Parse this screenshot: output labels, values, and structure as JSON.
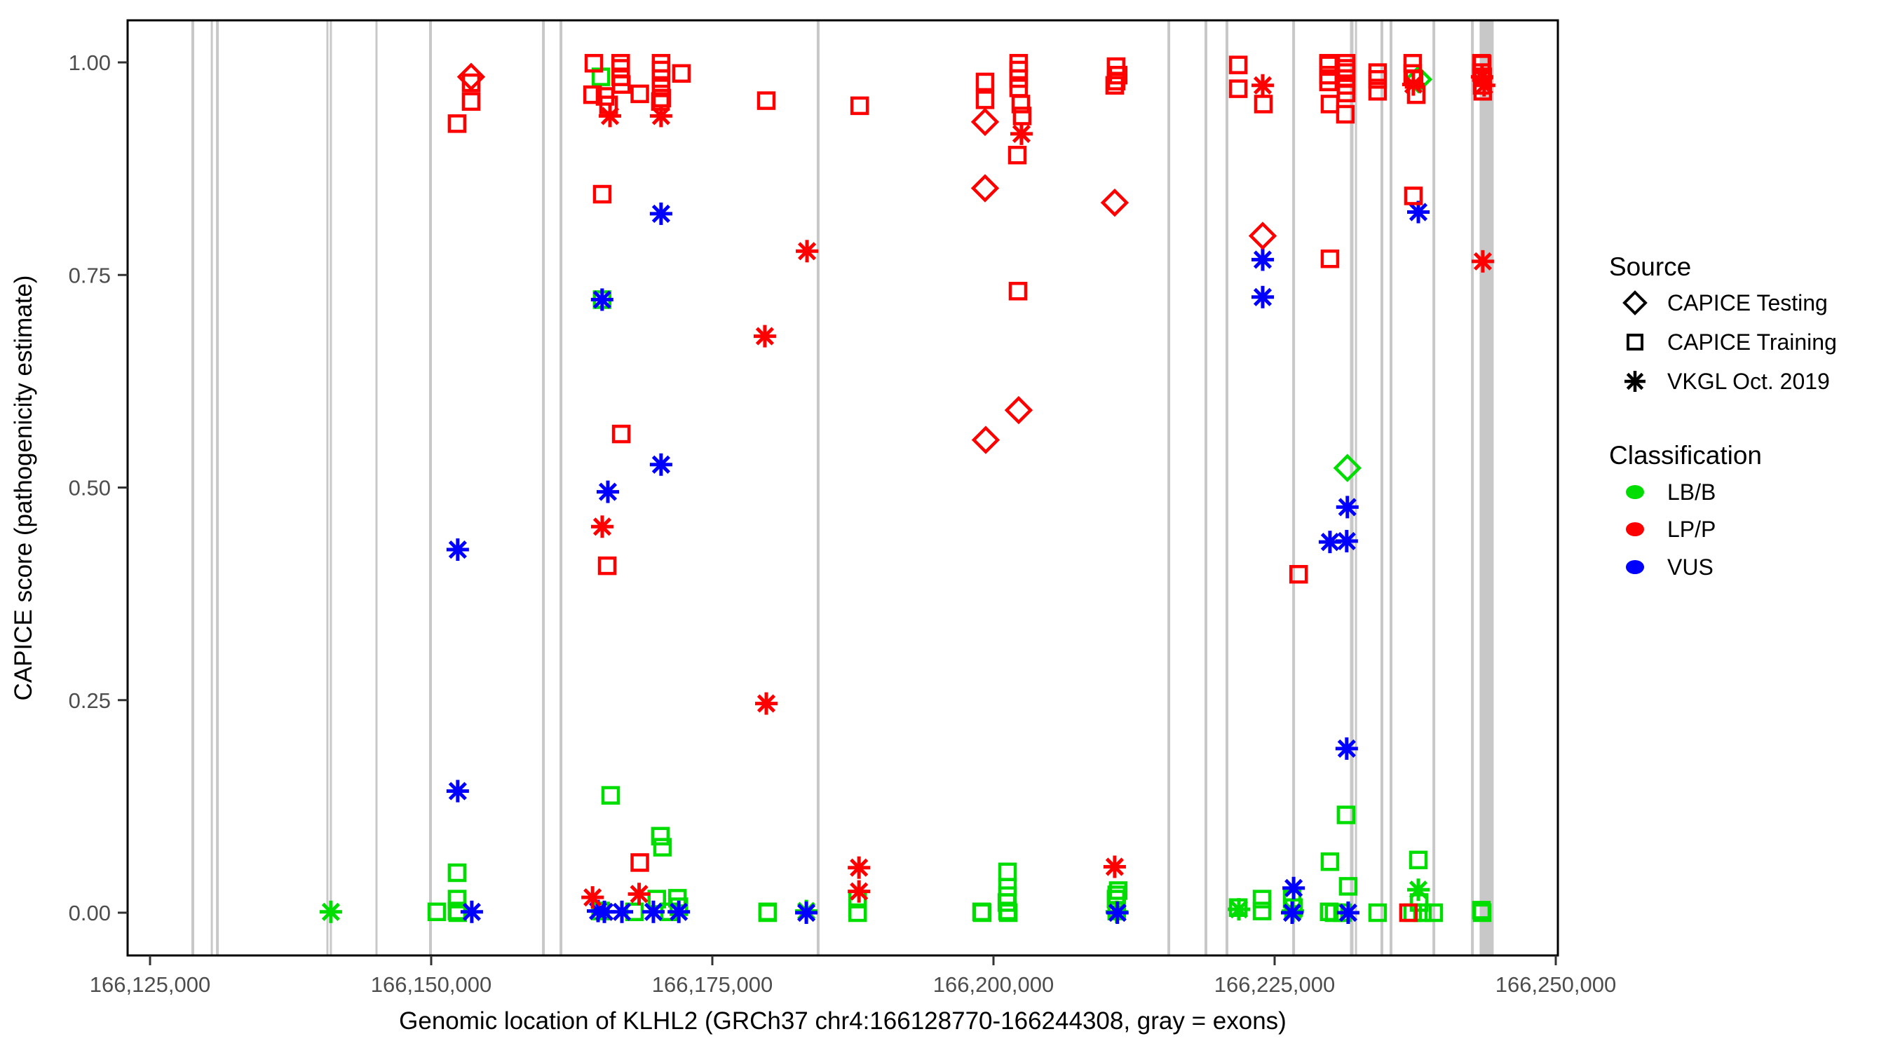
{
  "page": {
    "background": "#FFFFFF"
  },
  "colors": {
    "lbb_green": "#00DD00",
    "lpp_red": "#FF0000",
    "vus_blue": "#0000FF",
    "exon_gray": "#C8C8C8",
    "axis_text_gray": "#4D4D4D",
    "axis_line_black": "#000000"
  },
  "legend": {
    "source": {
      "title": "Source",
      "items": [
        {
          "glyph": "d",
          "label": "CAPICE Testing"
        },
        {
          "glyph": "s",
          "label": "CAPICE Training"
        },
        {
          "glyph": "a",
          "label": "VKGL Oct. 2019"
        }
      ]
    },
    "classification": {
      "title": "Classification",
      "items": [
        {
          "cls": "B",
          "label": "LB/B",
          "color": "#00DD00"
        },
        {
          "cls": "P",
          "label": "LP/P",
          "color": "#FF0000"
        },
        {
          "cls": "V",
          "label": "VUS",
          "color": "#0000FF"
        }
      ]
    }
  },
  "chart_data": {
    "type": "scatter",
    "title": "",
    "xlabel": "Genomic location of KLHL2 (GRCh37 chr4:166128770-166244308, gray = exons)",
    "ylabel": "CAPICE score (pathogenicity estimate)",
    "grid": "off",
    "legend_position": "right",
    "xlim_bp": [
      166122900,
      166250200
    ],
    "ylim": [
      -0.042,
      1.074
    ],
    "x_ticks": [
      {
        "bp": 166125000,
        "label": "166,125,000"
      },
      {
        "bp": 166150000,
        "label": "166,150,000"
      },
      {
        "bp": 166175000,
        "label": "166,175,000"
      },
      {
        "bp": 166200000,
        "label": "166,200,000"
      },
      {
        "bp": 166225000,
        "label": "166,225,000"
      },
      {
        "bp": 166250000,
        "label": "166,250,000"
      }
    ],
    "y_ticks": [
      {
        "v": 0.0,
        "label": "0.00"
      },
      {
        "v": 0.25,
        "label": "0.25"
      },
      {
        "v": 0.5,
        "label": "0.50"
      },
      {
        "v": 0.75,
        "label": "0.75"
      },
      {
        "v": 1.0,
        "label": "1.00"
      }
    ],
    "sources": {
      "d": "CAPICE Testing",
      "s": "CAPICE Training",
      "a": "VKGL Oct. 2019"
    },
    "classes": {
      "B": "LB/B",
      "P": "LP/P",
      "V": "VUS"
    },
    "exons_note": "gray vertical bands = exons",
    "exons": [
      {
        "bp": 166128800,
        "w": 4
      },
      {
        "bp": 166130490,
        "w": 3
      },
      {
        "bp": 166130990,
        "w": 4
      },
      {
        "bp": 166140770,
        "w": 3
      },
      {
        "bp": 166141080,
        "w": 3
      },
      {
        "bp": 166145140,
        "w": 3
      },
      {
        "bp": 166149940,
        "w": 4
      },
      {
        "bp": 166159980,
        "w": 4
      },
      {
        "bp": 166161540,
        "w": 4
      },
      {
        "bp": 166184410,
        "w": 4
      },
      {
        "bp": 166215590,
        "w": 4
      },
      {
        "bp": 166218890,
        "w": 4
      },
      {
        "bp": 166220760,
        "w": 4
      },
      {
        "bp": 166226690,
        "w": 4
      },
      {
        "bp": 166231860,
        "w": 5
      },
      {
        "bp": 166232240,
        "w": 3
      },
      {
        "bp": 166234540,
        "w": 4
      },
      {
        "bp": 166235350,
        "w": 4
      },
      {
        "bp": 166239160,
        "w": 4
      },
      {
        "bp": 166242590,
        "w": 4
      },
      {
        "bp": 166243850,
        "w": 20
      }
    ],
    "points": [
      [
        166141080,
        0.001,
        "a",
        "B"
      ],
      [
        166150500,
        0.001,
        "s",
        "B"
      ],
      [
        166152300,
        0.047,
        "s",
        "B"
      ],
      [
        166152300,
        0.016,
        "s",
        "B"
      ],
      [
        166152300,
        0.002,
        "s",
        "B"
      ],
      [
        166152360,
        0.0,
        "s",
        "B"
      ],
      [
        166153610,
        0.001,
        "a",
        "V"
      ],
      [
        166152360,
        0.427,
        "a",
        "V"
      ],
      [
        166152360,
        0.143,
        "a",
        "V"
      ],
      [
        166153550,
        0.983,
        "d",
        "P"
      ],
      [
        166153550,
        0.976,
        "s",
        "P"
      ],
      [
        166153550,
        0.954,
        "s",
        "P"
      ],
      [
        166152300,
        0.928,
        "s",
        "P"
      ],
      [
        166164470,
        0.999,
        "s",
        "P"
      ],
      [
        166166850,
        0.999,
        "s",
        "P"
      ],
      [
        166166850,
        0.993,
        "s",
        "P"
      ],
      [
        166166850,
        0.983,
        "s",
        "P"
      ],
      [
        166166910,
        0.974,
        "s",
        "P"
      ],
      [
        166165100,
        0.983,
        "s",
        "B"
      ],
      [
        166164350,
        0.962,
        "s",
        "P"
      ],
      [
        166165460,
        0.96,
        "s",
        "P"
      ],
      [
        166165770,
        0.95,
        "s",
        "P"
      ],
      [
        166165900,
        0.937,
        "a",
        "P"
      ],
      [
        166168550,
        0.963,
        "s",
        "P"
      ],
      [
        166170440,
        0.999,
        "s",
        "P"
      ],
      [
        166170440,
        0.991,
        "s",
        "P"
      ],
      [
        166170440,
        0.981,
        "s",
        "P"
      ],
      [
        166170440,
        0.97,
        "s",
        "P"
      ],
      [
        166170500,
        0.958,
        "s",
        "P"
      ],
      [
        166170380,
        0.954,
        "s",
        "P"
      ],
      [
        166170440,
        0.937,
        "a",
        "P"
      ],
      [
        166172250,
        0.987,
        "s",
        "P"
      ],
      [
        166165210,
        0.845,
        "s",
        "P"
      ],
      [
        166170440,
        0.822,
        "a",
        "V"
      ],
      [
        166165200,
        0.721,
        "a",
        "V"
      ],
      [
        166165200,
        0.721,
        "s",
        "B"
      ],
      [
        166166900,
        0.563,
        "s",
        "P"
      ],
      [
        166170440,
        0.527,
        "a",
        "V"
      ],
      [
        166165710,
        0.495,
        "a",
        "V"
      ],
      [
        166165210,
        0.454,
        "a",
        "P"
      ],
      [
        166165650,
        0.408,
        "s",
        "P"
      ],
      [
        166165960,
        0.138,
        "s",
        "B"
      ],
      [
        166170380,
        0.09,
        "s",
        "B"
      ],
      [
        166170570,
        0.077,
        "s",
        "B"
      ],
      [
        166168550,
        0.059,
        "s",
        "P"
      ],
      [
        166168490,
        0.022,
        "a",
        "P"
      ],
      [
        166164350,
        0.018,
        "a",
        "P"
      ],
      [
        166170060,
        0.016,
        "s",
        "B"
      ],
      [
        166171890,
        0.017,
        "s",
        "B"
      ],
      [
        166172020,
        0.007,
        "s",
        "B"
      ],
      [
        166165070,
        0.002,
        "s",
        "B"
      ],
      [
        166168080,
        0.001,
        "s",
        "B"
      ],
      [
        166171200,
        0.001,
        "s",
        "B"
      ],
      [
        166164840,
        0.002,
        "a",
        "V"
      ],
      [
        166165400,
        0.001,
        "a",
        "V"
      ],
      [
        166166960,
        0.001,
        "a",
        "V"
      ],
      [
        166169760,
        0.001,
        "a",
        "V"
      ],
      [
        166172020,
        0.001,
        "a",
        "V"
      ],
      [
        166179800,
        0.955,
        "s",
        "P"
      ],
      [
        166179670,
        0.678,
        "a",
        "P"
      ],
      [
        166179800,
        0.246,
        "a",
        "P"
      ],
      [
        166183420,
        0.778,
        "a",
        "P"
      ],
      [
        166179920,
        0.001,
        "s",
        "B"
      ],
      [
        166179920,
        0.0,
        "s",
        "B"
      ],
      [
        166183360,
        0.002,
        "a",
        "B"
      ],
      [
        166183360,
        0.0,
        "a",
        "V"
      ],
      [
        166188100,
        0.949,
        "s",
        "P"
      ],
      [
        166188040,
        0.053,
        "a",
        "P"
      ],
      [
        166188040,
        0.025,
        "a",
        "P"
      ],
      [
        166187920,
        0.016,
        "s",
        "B"
      ],
      [
        166187920,
        0.0,
        "s",
        "B"
      ],
      [
        166199250,
        0.977,
        "s",
        "P"
      ],
      [
        166199250,
        0.956,
        "s",
        "P"
      ],
      [
        166199250,
        0.93,
        "d",
        "P"
      ],
      [
        166202240,
        0.999,
        "s",
        "P"
      ],
      [
        166202240,
        0.991,
        "s",
        "P"
      ],
      [
        166202240,
        0.981,
        "s",
        "P"
      ],
      [
        166202240,
        0.97,
        "s",
        "P"
      ],
      [
        166202430,
        0.951,
        "s",
        "P"
      ],
      [
        166202550,
        0.937,
        "s",
        "P"
      ],
      [
        166202490,
        0.916,
        "a",
        "P"
      ],
      [
        166202120,
        0.891,
        "s",
        "P"
      ],
      [
        166199250,
        0.852,
        "d",
        "P"
      ],
      [
        166202180,
        0.731,
        "s",
        "P"
      ],
      [
        166202240,
        0.591,
        "d",
        "P"
      ],
      [
        166199310,
        0.556,
        "d",
        "P"
      ],
      [
        166198940,
        0.001,
        "s",
        "B"
      ],
      [
        166199000,
        0.0,
        "s",
        "B"
      ],
      [
        166201250,
        0.048,
        "s",
        "B"
      ],
      [
        166201250,
        0.03,
        "s",
        "B"
      ],
      [
        166201250,
        0.02,
        "s",
        "B"
      ],
      [
        166201190,
        0.012,
        "s",
        "B"
      ],
      [
        166201250,
        0.002,
        "s",
        "B"
      ],
      [
        166201310,
        0.0,
        "s",
        "B"
      ],
      [
        166210900,
        0.995,
        "s",
        "P"
      ],
      [
        166211090,
        0.985,
        "s",
        "P"
      ],
      [
        166210900,
        0.978,
        "s",
        "P"
      ],
      [
        166210780,
        0.973,
        "s",
        "P"
      ],
      [
        166210780,
        0.835,
        "d",
        "P"
      ],
      [
        166210780,
        0.054,
        "a",
        "P"
      ],
      [
        166211090,
        0.026,
        "s",
        "B"
      ],
      [
        166210960,
        0.021,
        "s",
        "B"
      ],
      [
        166210900,
        0.016,
        "s",
        "B"
      ],
      [
        166210960,
        0.002,
        "s",
        "B"
      ],
      [
        166210960,
        0.001,
        "a",
        "B"
      ],
      [
        166211020,
        0.0,
        "a",
        "V"
      ],
      [
        166221760,
        0.997,
        "s",
        "P"
      ],
      [
        166221760,
        0.969,
        "s",
        "P"
      ],
      [
        166223940,
        0.973,
        "a",
        "P"
      ],
      [
        166224000,
        0.951,
        "s",
        "P"
      ],
      [
        166223940,
        0.796,
        "d",
        "P"
      ],
      [
        166223940,
        0.768,
        "a",
        "V"
      ],
      [
        166223940,
        0.724,
        "a",
        "V"
      ],
      [
        166221760,
        0.006,
        "s",
        "B"
      ],
      [
        166221820,
        0.004,
        "a",
        "B"
      ],
      [
        166223880,
        0.016,
        "s",
        "B"
      ],
      [
        166223880,
        0.002,
        "s",
        "B"
      ],
      [
        166226690,
        0.029,
        "a",
        "V"
      ],
      [
        166226560,
        0.016,
        "s",
        "B"
      ],
      [
        166226690,
        0.006,
        "s",
        "B"
      ],
      [
        166226630,
        0.002,
        "a",
        "B"
      ],
      [
        166226560,
        0.0,
        "a",
        "V"
      ],
      [
        166229790,
        0.999,
        "s",
        "P"
      ],
      [
        166229790,
        0.997,
        "s",
        "P"
      ],
      [
        166229790,
        0.985,
        "s",
        "P"
      ],
      [
        166229790,
        0.977,
        "s",
        "P"
      ],
      [
        166229920,
        0.951,
        "s",
        "P"
      ],
      [
        166231350,
        0.999,
        "s",
        "P"
      ],
      [
        166231350,
        0.993,
        "s",
        "P"
      ],
      [
        166231350,
        0.988,
        "s",
        "P"
      ],
      [
        166231350,
        0.981,
        "s",
        "P"
      ],
      [
        166231350,
        0.973,
        "s",
        "P"
      ],
      [
        166231350,
        0.964,
        "s",
        "P"
      ],
      [
        166231290,
        0.939,
        "s",
        "P"
      ],
      [
        166234160,
        0.988,
        "s",
        "P"
      ],
      [
        166234160,
        0.98,
        "s",
        "P"
      ],
      [
        166234160,
        0.966,
        "s",
        "P"
      ],
      [
        166229920,
        0.769,
        "s",
        "P"
      ],
      [
        166227130,
        0.398,
        "s",
        "P"
      ],
      [
        166231470,
        0.523,
        "d",
        "B"
      ],
      [
        166231470,
        0.477,
        "a",
        "V"
      ],
      [
        166231410,
        0.437,
        "a",
        "V"
      ],
      [
        166229920,
        0.436,
        "a",
        "V"
      ],
      [
        166231410,
        0.193,
        "a",
        "V"
      ],
      [
        166231350,
        0.115,
        "s",
        "B"
      ],
      [
        166229920,
        0.06,
        "s",
        "B"
      ],
      [
        166231540,
        0.031,
        "s",
        "B"
      ],
      [
        166229850,
        0.001,
        "s",
        "B"
      ],
      [
        166230290,
        0.0,
        "s",
        "B"
      ],
      [
        166231040,
        0.0,
        "s",
        "B"
      ],
      [
        166234160,
        0.0,
        "s",
        "B"
      ],
      [
        166231540,
        0.0,
        "a",
        "V"
      ],
      [
        166237280,
        0.999,
        "s",
        "P"
      ],
      [
        166237280,
        0.987,
        "s",
        "P"
      ],
      [
        166237400,
        0.98,
        "s",
        "P"
      ],
      [
        166237590,
        0.962,
        "s",
        "P"
      ],
      [
        166237780,
        0.98,
        "d",
        "B"
      ],
      [
        166237340,
        0.974,
        "a",
        "P"
      ],
      [
        166237340,
        0.843,
        "s",
        "P"
      ],
      [
        166237780,
        0.824,
        "a",
        "V"
      ],
      [
        166237780,
        0.062,
        "s",
        "B"
      ],
      [
        166237780,
        0.027,
        "a",
        "B"
      ],
      [
        166237840,
        0.012,
        "s",
        "B"
      ],
      [
        166236900,
        0.0,
        "s",
        "P"
      ],
      [
        166237280,
        0.0,
        "s",
        "B"
      ],
      [
        166238150,
        0.0,
        "s",
        "B"
      ],
      [
        166239150,
        0.0,
        "s",
        "B"
      ],
      [
        166243390,
        0.999,
        "s",
        "P"
      ],
      [
        166243450,
        0.998,
        "s",
        "P"
      ],
      [
        166243390,
        0.988,
        "s",
        "P"
      ],
      [
        166243510,
        0.983,
        "s",
        "P"
      ],
      [
        166243450,
        0.973,
        "s",
        "P"
      ],
      [
        166243510,
        0.966,
        "s",
        "P"
      ],
      [
        166243450,
        0.983,
        "a",
        "P"
      ],
      [
        166243630,
        0.973,
        "a",
        "P"
      ],
      [
        166243510,
        0.766,
        "a",
        "P"
      ],
      [
        166243390,
        0.003,
        "s",
        "B"
      ],
      [
        166243450,
        0.0,
        "s",
        "B"
      ]
    ]
  }
}
